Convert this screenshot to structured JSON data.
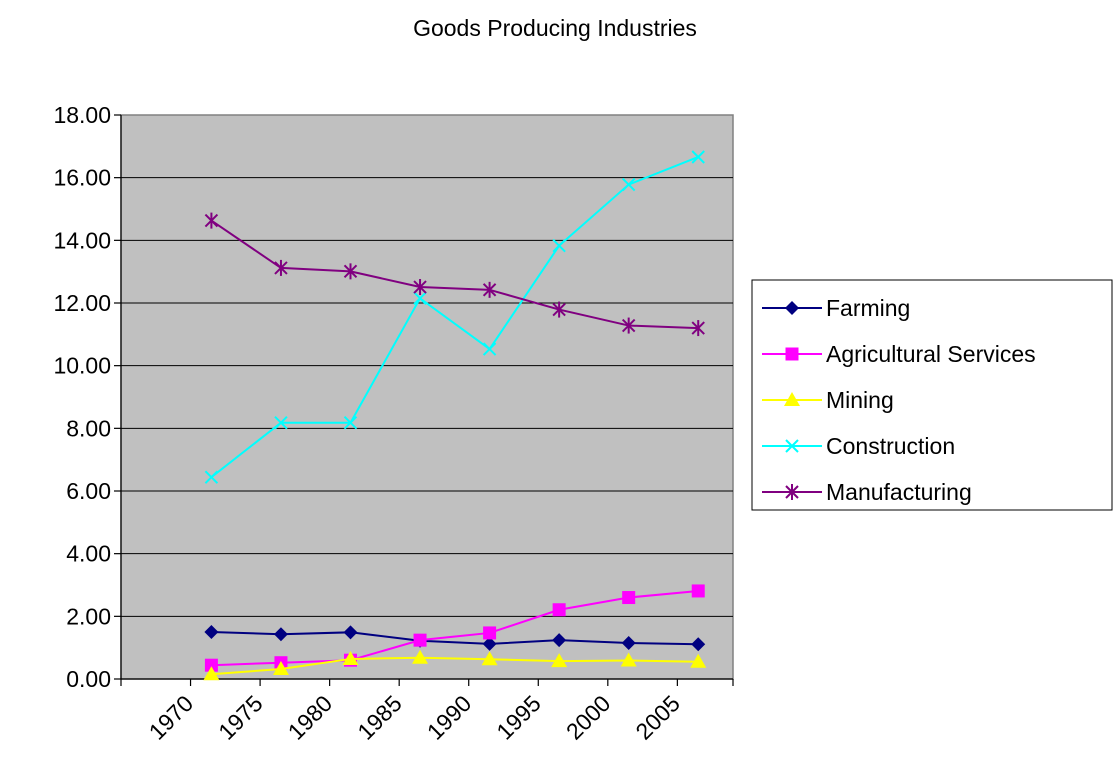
{
  "chart_data": {
    "type": "line",
    "title": "Goods Producing Industries",
    "x": [
      1972.5,
      1977.5,
      1982.5,
      1987.5,
      1992.5,
      1997.5,
      2002.5,
      2007.5
    ],
    "xlim": [
      1966,
      2010
    ],
    "xticks": [
      "1970",
      "1975",
      "1980",
      "1985",
      "1990",
      "1995",
      "2000",
      "2005"
    ],
    "xtick_values": [
      1970,
      1975,
      1980,
      1985,
      1990,
      1995,
      2000,
      2005
    ],
    "ylim": [
      0,
      18
    ],
    "yticks": [
      "0.00",
      "2.00",
      "4.00",
      "6.00",
      "8.00",
      "10.00",
      "12.00",
      "14.00",
      "16.00",
      "18.00"
    ],
    "ytick_values": [
      0,
      2,
      4,
      6,
      8,
      10,
      12,
      14,
      16,
      18
    ],
    "grid": true,
    "plot_background": "#c0c0c0",
    "legend_position": "right",
    "series": [
      {
        "name": "Farming",
        "color": "#000080",
        "marker": "diamond",
        "values": [
          1.5,
          1.43,
          1.49,
          1.22,
          1.12,
          1.24,
          1.15,
          1.11
        ]
      },
      {
        "name": "Agricultural Services",
        "color": "#ff00ff",
        "marker": "square",
        "values": [
          0.44,
          0.52,
          0.6,
          1.24,
          1.47,
          2.21,
          2.6,
          2.81
        ]
      },
      {
        "name": "Mining",
        "color": "#ffff00",
        "marker": "triangle",
        "values": [
          0.15,
          0.32,
          0.64,
          0.68,
          0.63,
          0.57,
          0.59,
          0.55
        ]
      },
      {
        "name": "Construction",
        "color": "#00ffff",
        "marker": "x",
        "values": [
          6.44,
          8.18,
          8.18,
          12.15,
          10.53,
          13.83,
          15.78,
          16.66
        ]
      },
      {
        "name": "Manufacturing",
        "color": "#800080",
        "marker": "star",
        "values": [
          14.63,
          13.12,
          13.01,
          12.51,
          12.42,
          11.79,
          11.28,
          11.2
        ]
      }
    ]
  }
}
